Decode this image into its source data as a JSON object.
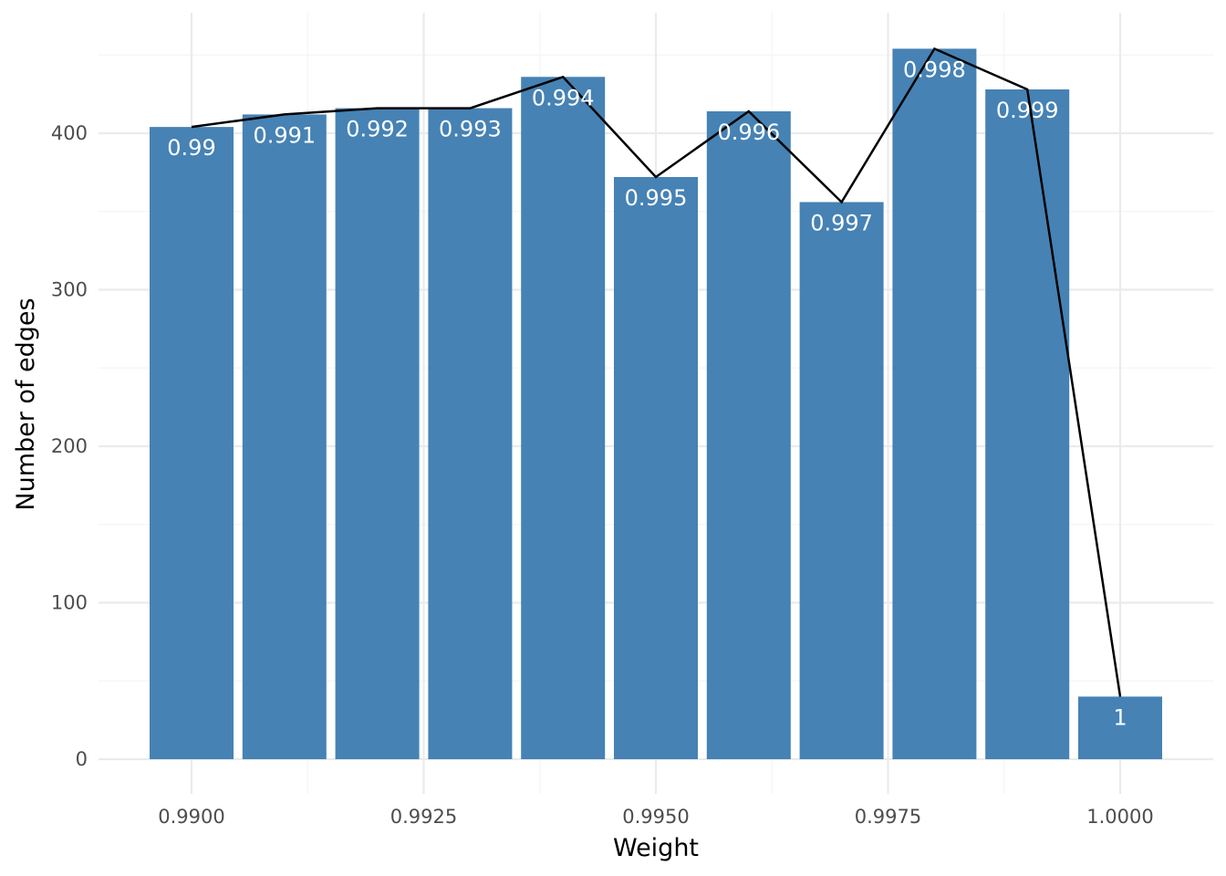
{
  "chart_data": {
    "type": "bar",
    "xlabel": "Weight",
    "ylabel": "Number of edges",
    "x": [
      0.99,
      0.991,
      0.992,
      0.993,
      0.994,
      0.995,
      0.996,
      0.997,
      0.998,
      0.999,
      1.0
    ],
    "values": [
      404,
      412,
      416,
      416,
      436,
      372,
      414,
      356,
      454,
      428,
      40
    ],
    "bar_labels": [
      "0.99",
      "0.991",
      "0.992",
      "0.993",
      "0.994",
      "0.995",
      "0.996",
      "0.997",
      "0.998",
      "0.999",
      "1"
    ],
    "bar_color": "#4682b4",
    "line_color": "#000000",
    "overlay": "line connecting bar tops",
    "xlim": [
      0.98955,
      1.00045
    ],
    "ylim": [
      0,
      476
    ],
    "x_ticks": [
      0.99,
      0.9925,
      0.995,
      0.9975,
      1.0
    ],
    "x_tick_labels": [
      "0.9900",
      "0.9925",
      "0.9950",
      "0.9975",
      "1.0000"
    ],
    "y_ticks": [
      0,
      100,
      200,
      300,
      400
    ],
    "y_tick_labels": [
      "0",
      "100",
      "200",
      "300",
      "400"
    ],
    "grid": true,
    "legend": "none"
  }
}
